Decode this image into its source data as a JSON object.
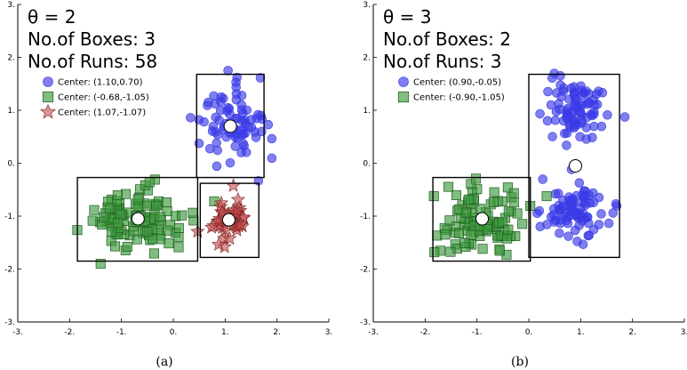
{
  "chart_data": [
    {
      "type": "scatter",
      "subplot_label": "(a)",
      "theta_text": "θ = 2",
      "boxes_text": "No.of Boxes: 3",
      "runs_text": "No.of Runs: 58",
      "xlim": [
        -3,
        3
      ],
      "ylim": [
        -3,
        3
      ],
      "xticks": [
        "-3.",
        "-2.",
        "-1.",
        "0.",
        "1.",
        "2.",
        "3."
      ],
      "yticks": [
        "-3.",
        "-2.",
        "-1.",
        "0.",
        "1.",
        "2.",
        "3."
      ],
      "series": [
        {
          "name": "Center: (1.10,0.70)",
          "marker": "circle",
          "color": "#3a3ae6",
          "center": [
            1.1,
            0.7
          ],
          "spread": [
            0.35,
            0.38
          ],
          "count": 80
        },
        {
          "name": "Center: (-0.68,-1.05)",
          "marker": "square",
          "color": "#3f9a3f",
          "center": [
            -0.68,
            -1.05
          ],
          "spread": [
            0.48,
            0.3
          ],
          "count": 110
        },
        {
          "name": "Center: (1.07,-1.07)",
          "marker": "star",
          "color": "#c24a4a",
          "center": [
            1.07,
            -1.07
          ],
          "spread": [
            0.22,
            0.22
          ],
          "count": 45
        }
      ],
      "boxes": [
        {
          "x0": 0.45,
          "x1": 1.75,
          "y0": -0.27,
          "y1": 1.68
        },
        {
          "x0": -1.85,
          "x1": 0.47,
          "y0": -1.85,
          "y1": -0.27
        },
        {
          "x0": 0.52,
          "x1": 1.65,
          "y0": -1.78,
          "y1": -0.38
        }
      ]
    },
    {
      "type": "scatter",
      "subplot_label": "(b)",
      "theta_text": "θ = 3",
      "boxes_text": "No.of Boxes: 2",
      "runs_text": "No.of Runs: 3",
      "xlim": [
        -3,
        3
      ],
      "ylim": [
        -3,
        3
      ],
      "xticks": [
        "-3.",
        "-2.",
        "-1.",
        "0.",
        "1.",
        "2.",
        "3."
      ],
      "yticks": [
        "-3.",
        "-2.",
        "-1.",
        "0.",
        "1.",
        "2.",
        "3."
      ],
      "series": [
        {
          "name": "Center: (0.90,-0.05)",
          "marker": "circle",
          "color": "#3a3ae6",
          "center": [
            0.9,
            -0.05
          ],
          "spread": [
            0.4,
            0.38
          ],
          "count": 170
        },
        {
          "name": "Center: (-0.90,-1.05)",
          "marker": "square",
          "color": "#3f9a3f",
          "center": [
            -0.9,
            -1.05
          ],
          "spread": [
            0.42,
            0.3
          ],
          "count": 100
        }
      ],
      "boxes": [
        {
          "x0": 0.0,
          "x1": 1.75,
          "y0": -1.78,
          "y1": 1.68
        },
        {
          "x0": -1.85,
          "x1": 0.03,
          "y0": -1.85,
          "y1": -0.27
        }
      ]
    }
  ]
}
